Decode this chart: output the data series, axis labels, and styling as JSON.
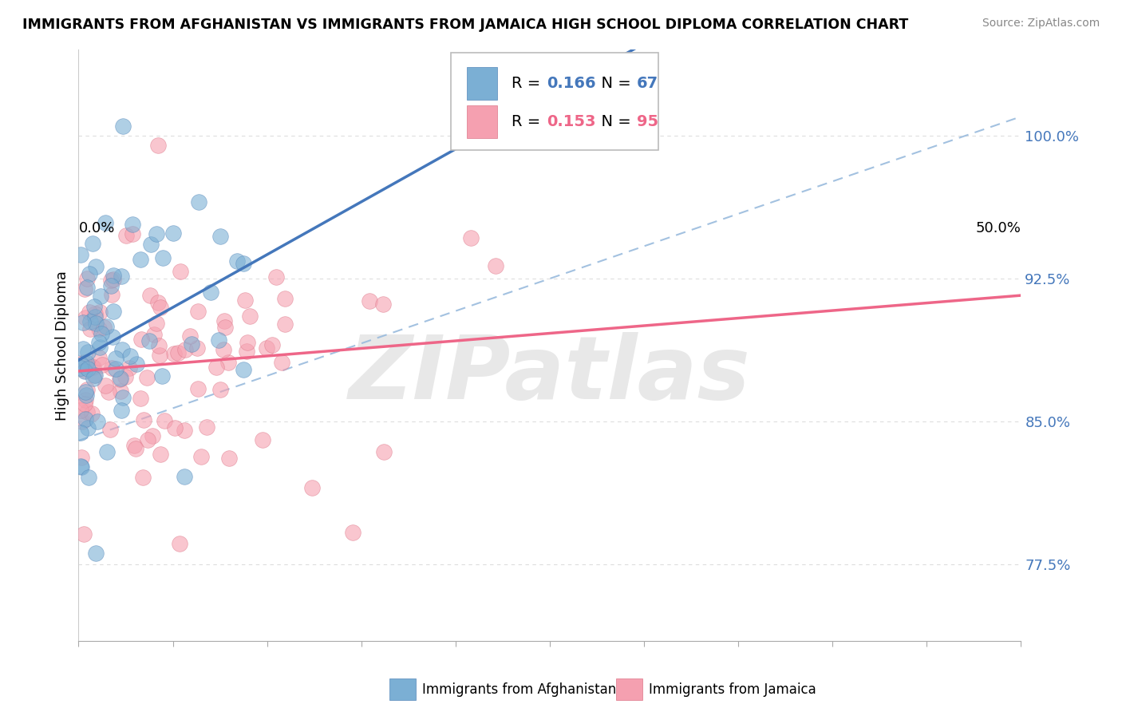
{
  "title": "IMMIGRANTS FROM AFGHANISTAN VS IMMIGRANTS FROM JAMAICA HIGH SCHOOL DIPLOMA CORRELATION CHART",
  "source": "Source: ZipAtlas.com",
  "ylabel": "High School Diploma",
  "ytick_labels": [
    "77.5%",
    "85.0%",
    "92.5%",
    "100.0%"
  ],
  "ytick_values": [
    0.775,
    0.85,
    0.925,
    1.0
  ],
  "xmin": 0.0,
  "xmax": 0.5,
  "ymin": 0.735,
  "ymax": 1.045,
  "afghanistan_color": "#7BAFD4",
  "afghanistan_edge": "#5588BB",
  "jamaica_color": "#F5A0B0",
  "jamaica_edge": "#DD7788",
  "regression_af_color": "#4477BB",
  "regression_ja_color": "#EE6688",
  "dashed_color": "#99BBDD",
  "afghanistan_R": 0.166,
  "afghanistan_N": 67,
  "jamaica_R": 0.153,
  "jamaica_N": 95,
  "legend_label_afghanistan": "Immigrants from Afghanistan",
  "legend_label_jamaica": "Immigrants from Jamaica",
  "watermark": "ZIPatlas",
  "af_R_color": "#4477BB",
  "ja_R_color": "#EE6688"
}
